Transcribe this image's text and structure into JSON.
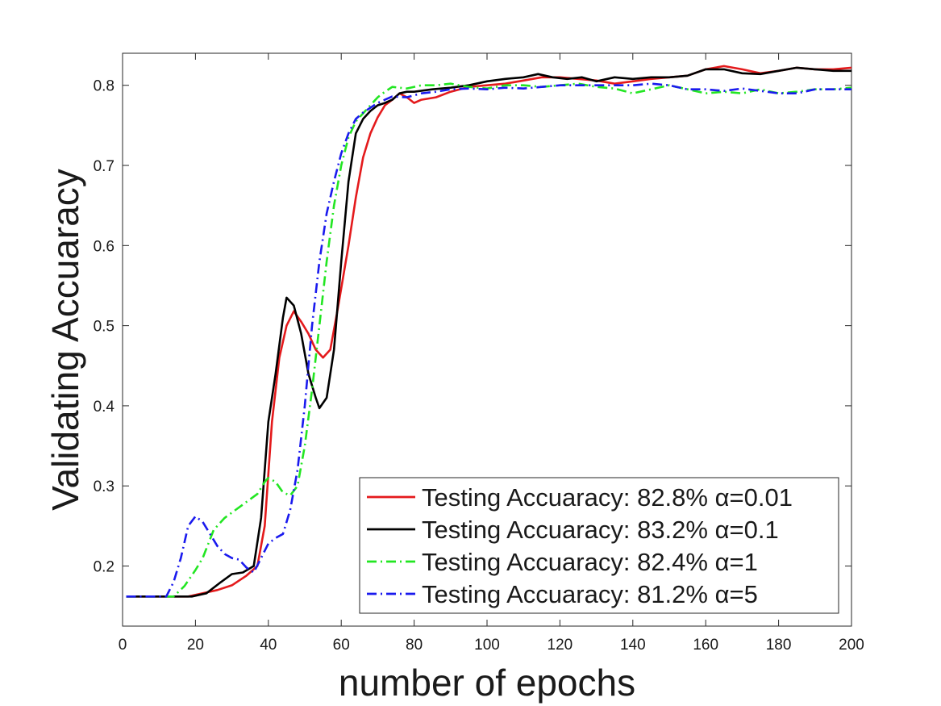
{
  "chart_data": {
    "type": "line",
    "title": "",
    "xlabel": "number of epochs",
    "ylabel": "Validating Accuaracy",
    "xlim": [
      0,
      200
    ],
    "ylim": [
      0.125,
      0.84
    ],
    "xticks": [
      0,
      20,
      40,
      60,
      80,
      100,
      120,
      140,
      160,
      180,
      200
    ],
    "yticks": [
      0.2,
      0.3,
      0.4,
      0.5,
      0.6,
      0.7,
      0.8
    ],
    "grid": false,
    "legend_position": "bottom-right",
    "series": [
      {
        "name": "Testing Accuaracy: 82.8% α=0.01",
        "color": "#e41a1c",
        "dash": "solid",
        "points": [
          [
            1,
            0.162
          ],
          [
            10,
            0.162
          ],
          [
            18,
            0.162
          ],
          [
            22,
            0.166
          ],
          [
            26,
            0.17
          ],
          [
            30,
            0.176
          ],
          [
            34,
            0.188
          ],
          [
            37,
            0.2
          ],
          [
            39,
            0.25
          ],
          [
            41,
            0.38
          ],
          [
            43,
            0.46
          ],
          [
            45,
            0.5
          ],
          [
            47,
            0.518
          ],
          [
            49,
            0.505
          ],
          [
            51,
            0.49
          ],
          [
            53,
            0.47
          ],
          [
            55,
            0.46
          ],
          [
            57,
            0.47
          ],
          [
            59,
            0.52
          ],
          [
            62,
            0.6
          ],
          [
            64,
            0.66
          ],
          [
            66,
            0.71
          ],
          [
            68,
            0.74
          ],
          [
            70,
            0.76
          ],
          [
            72,
            0.775
          ],
          [
            74,
            0.782
          ],
          [
            76,
            0.79
          ],
          [
            78,
            0.785
          ],
          [
            80,
            0.778
          ],
          [
            82,
            0.782
          ],
          [
            86,
            0.785
          ],
          [
            90,
            0.792
          ],
          [
            95,
            0.798
          ],
          [
            100,
            0.8
          ],
          [
            105,
            0.802
          ],
          [
            110,
            0.806
          ],
          [
            115,
            0.81
          ],
          [
            120,
            0.81
          ],
          [
            125,
            0.808
          ],
          [
            130,
            0.806
          ],
          [
            135,
            0.802
          ],
          [
            140,
            0.805
          ],
          [
            145,
            0.808
          ],
          [
            150,
            0.81
          ],
          [
            155,
            0.812
          ],
          [
            160,
            0.82
          ],
          [
            165,
            0.824
          ],
          [
            170,
            0.82
          ],
          [
            175,
            0.815
          ],
          [
            180,
            0.818
          ],
          [
            185,
            0.822
          ],
          [
            190,
            0.82
          ],
          [
            195,
            0.82
          ],
          [
            200,
            0.822
          ]
        ]
      },
      {
        "name": "Testing Accuaracy: 83.2% α=0.1",
        "color": "#000000",
        "dash": "solid",
        "points": [
          [
            1,
            0.162
          ],
          [
            10,
            0.162
          ],
          [
            19,
            0.162
          ],
          [
            23,
            0.166
          ],
          [
            27,
            0.18
          ],
          [
            30,
            0.19
          ],
          [
            33,
            0.192
          ],
          [
            36,
            0.2
          ],
          [
            38,
            0.26
          ],
          [
            40,
            0.38
          ],
          [
            42,
            0.44
          ],
          [
            44,
            0.51
          ],
          [
            45,
            0.535
          ],
          [
            47,
            0.525
          ],
          [
            49,
            0.49
          ],
          [
            51,
            0.44
          ],
          [
            53,
            0.41
          ],
          [
            54,
            0.397
          ],
          [
            56,
            0.41
          ],
          [
            58,
            0.47
          ],
          [
            60,
            0.58
          ],
          [
            62,
            0.68
          ],
          [
            64,
            0.74
          ],
          [
            66,
            0.758
          ],
          [
            68,
            0.768
          ],
          [
            70,
            0.775
          ],
          [
            72,
            0.778
          ],
          [
            74,
            0.782
          ],
          [
            76,
            0.79
          ],
          [
            78,
            0.792
          ],
          [
            80,
            0.792
          ],
          [
            85,
            0.795
          ],
          [
            90,
            0.797
          ],
          [
            95,
            0.8
          ],
          [
            100,
            0.805
          ],
          [
            105,
            0.808
          ],
          [
            110,
            0.81
          ],
          [
            114,
            0.814
          ],
          [
            118,
            0.81
          ],
          [
            122,
            0.808
          ],
          [
            126,
            0.81
          ],
          [
            130,
            0.805
          ],
          [
            135,
            0.81
          ],
          [
            140,
            0.808
          ],
          [
            145,
            0.81
          ],
          [
            150,
            0.81
          ],
          [
            155,
            0.812
          ],
          [
            160,
            0.82
          ],
          [
            165,
            0.82
          ],
          [
            170,
            0.815
          ],
          [
            175,
            0.814
          ],
          [
            180,
            0.818
          ],
          [
            185,
            0.822
          ],
          [
            190,
            0.82
          ],
          [
            195,
            0.818
          ],
          [
            200,
            0.818
          ]
        ]
      },
      {
        "name": "Testing Accuaracy: 82.4% α=1",
        "color": "#22e622",
        "dash": "dashdot",
        "points": [
          [
            1,
            0.162
          ],
          [
            10,
            0.162
          ],
          [
            14,
            0.162
          ],
          [
            17,
            0.175
          ],
          [
            20,
            0.195
          ],
          [
            22,
            0.21
          ],
          [
            25,
            0.245
          ],
          [
            28,
            0.26
          ],
          [
            31,
            0.27
          ],
          [
            34,
            0.28
          ],
          [
            37,
            0.29
          ],
          [
            39,
            0.305
          ],
          [
            40,
            0.31
          ],
          [
            42,
            0.305
          ],
          [
            44,
            0.292
          ],
          [
            46,
            0.288
          ],
          [
            48,
            0.3
          ],
          [
            50,
            0.35
          ],
          [
            52,
            0.42
          ],
          [
            54,
            0.5
          ],
          [
            56,
            0.58
          ],
          [
            58,
            0.65
          ],
          [
            60,
            0.7
          ],
          [
            62,
            0.735
          ],
          [
            64,
            0.755
          ],
          [
            66,
            0.765
          ],
          [
            68,
            0.775
          ],
          [
            70,
            0.785
          ],
          [
            72,
            0.792
          ],
          [
            74,
            0.798
          ],
          [
            78,
            0.796
          ],
          [
            82,
            0.8
          ],
          [
            86,
            0.8
          ],
          [
            90,
            0.802
          ],
          [
            95,
            0.798
          ],
          [
            100,
            0.796
          ],
          [
            105,
            0.8
          ],
          [
            110,
            0.8
          ],
          [
            115,
            0.798
          ],
          [
            120,
            0.8
          ],
          [
            125,
            0.802
          ],
          [
            130,
            0.798
          ],
          [
            135,
            0.796
          ],
          [
            140,
            0.79
          ],
          [
            145,
            0.795
          ],
          [
            150,
            0.8
          ],
          [
            155,
            0.795
          ],
          [
            160,
            0.79
          ],
          [
            165,
            0.792
          ],
          [
            170,
            0.79
          ],
          [
            175,
            0.795
          ],
          [
            180,
            0.79
          ],
          [
            185,
            0.792
          ],
          [
            190,
            0.795
          ],
          [
            195,
            0.795
          ],
          [
            200,
            0.797
          ]
        ]
      },
      {
        "name": "Testing Accuaracy: 81.2% α=5",
        "color": "#1a1aee",
        "dash": "dashdot",
        "points": [
          [
            1,
            0.162
          ],
          [
            10,
            0.162
          ],
          [
            12,
            0.162
          ],
          [
            14,
            0.18
          ],
          [
            16,
            0.21
          ],
          [
            18,
            0.25
          ],
          [
            20,
            0.262
          ],
          [
            22,
            0.255
          ],
          [
            24,
            0.24
          ],
          [
            26,
            0.225
          ],
          [
            28,
            0.215
          ],
          [
            30,
            0.21
          ],
          [
            32,
            0.208
          ],
          [
            34,
            0.198
          ],
          [
            36,
            0.192
          ],
          [
            38,
            0.21
          ],
          [
            40,
            0.228
          ],
          [
            42,
            0.235
          ],
          [
            44,
            0.24
          ],
          [
            46,
            0.27
          ],
          [
            48,
            0.32
          ],
          [
            50,
            0.4
          ],
          [
            52,
            0.5
          ],
          [
            54,
            0.58
          ],
          [
            56,
            0.64
          ],
          [
            58,
            0.68
          ],
          [
            60,
            0.715
          ],
          [
            62,
            0.74
          ],
          [
            64,
            0.758
          ],
          [
            66,
            0.766
          ],
          [
            68,
            0.772
          ],
          [
            70,
            0.778
          ],
          [
            72,
            0.782
          ],
          [
            74,
            0.786
          ],
          [
            78,
            0.785
          ],
          [
            82,
            0.79
          ],
          [
            86,
            0.792
          ],
          [
            90,
            0.795
          ],
          [
            95,
            0.796
          ],
          [
            100,
            0.795
          ],
          [
            105,
            0.797
          ],
          [
            110,
            0.796
          ],
          [
            115,
            0.798
          ],
          [
            120,
            0.8
          ],
          [
            125,
            0.8
          ],
          [
            130,
            0.8
          ],
          [
            135,
            0.8
          ],
          [
            140,
            0.8
          ],
          [
            145,
            0.802
          ],
          [
            150,
            0.8
          ],
          [
            155,
            0.795
          ],
          [
            160,
            0.795
          ],
          [
            165,
            0.793
          ],
          [
            170,
            0.796
          ],
          [
            175,
            0.793
          ],
          [
            180,
            0.79
          ],
          [
            185,
            0.79
          ],
          [
            190,
            0.795
          ],
          [
            195,
            0.795
          ],
          [
            200,
            0.795
          ]
        ]
      }
    ]
  }
}
